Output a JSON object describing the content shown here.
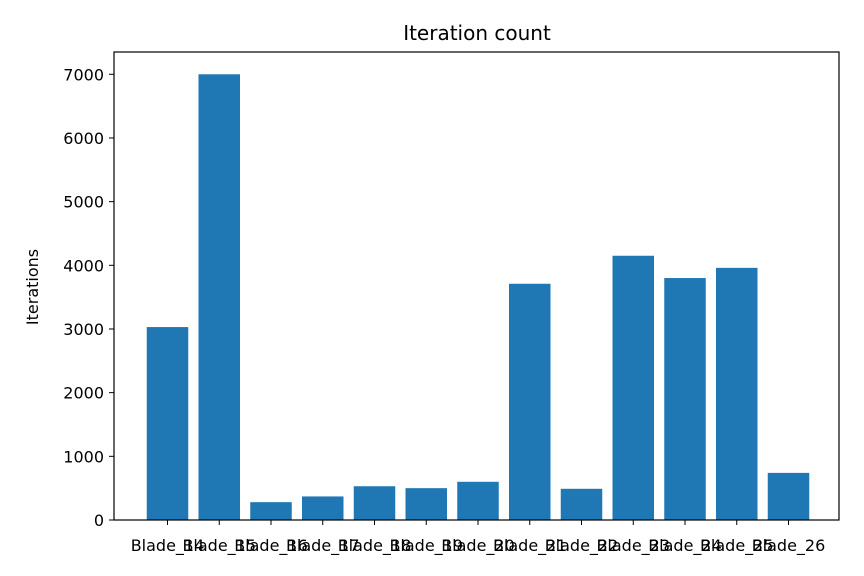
{
  "chart_data": {
    "type": "bar",
    "title": "Iteration count",
    "xlabel": "",
    "ylabel": "Iterations",
    "categories": [
      "Blade_14",
      "Blade_15",
      "Blade_16",
      "Blade_17",
      "Blade_18",
      "Blade_19",
      "Blade_20",
      "Blade_21",
      "Blade_22",
      "Blade_23",
      "Blade_24",
      "Blade_25",
      "Blade_26"
    ],
    "values": [
      3030,
      7000,
      280,
      370,
      530,
      500,
      600,
      3710,
      490,
      4150,
      3800,
      3960,
      740
    ],
    "ylim": [
      0,
      7350
    ],
    "yticks": [
      0,
      1000,
      2000,
      3000,
      4000,
      5000,
      6000,
      7000
    ],
    "bar_color": "#1f77b4",
    "grid": false,
    "legend": "none"
  }
}
